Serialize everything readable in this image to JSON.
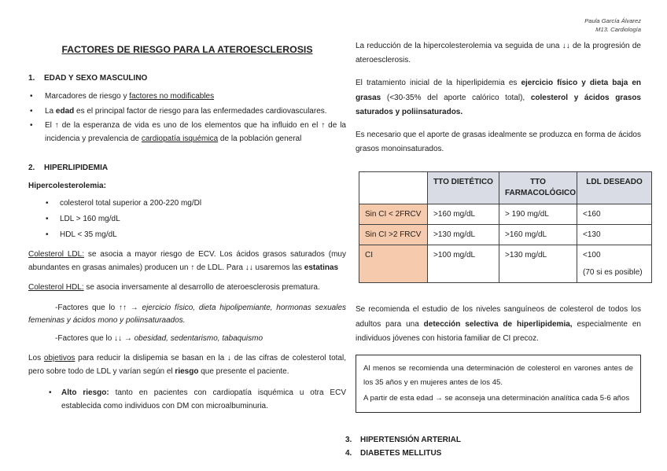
{
  "page": {
    "author": "Paula García Álvarez",
    "module": "M13. Cardiología",
    "title": "FACTORES DE RIESGO PARA LA ATEROESCLEROSIS"
  },
  "left": {
    "section1": {
      "number": "1.",
      "heading": "EDAD Y SEXO MASCULINO"
    },
    "s1_bullets": [
      [
        {
          "t": "Marcadores de riesgo y "
        },
        {
          "t": "factores no modificables",
          "u": true
        }
      ],
      [
        {
          "t": "La "
        },
        {
          "t": "edad",
          "b": true
        },
        {
          "t": " es el principal factor de riesgo para las enfermedades cardiovasculares."
        }
      ],
      [
        {
          "t": "El ↑ de la esperanza de vida es uno de los elementos que ha influido en el ↑ de la incidencia y prevalencia de "
        },
        {
          "t": "cardiopatía isquémica",
          "u": true
        },
        {
          "t": " de la población general"
        }
      ]
    ],
    "section2": {
      "number": "2.",
      "heading": "HIPERLIPIDEMIA"
    },
    "hiper_heading": "Hipercolesterolemia:",
    "s2_bullets": [
      "colesterol total superior a 200-220 mg/Dl",
      "LDL > 160 mg/dL",
      "HDL < 35 mg/dL"
    ],
    "ldl_para": [
      {
        "t": "Colesterol LDL:",
        "u": true
      },
      {
        "t": " se asocia a mayor riesgo de ECV. Los ácidos grasos saturados (muy abundantes en grasas animales) producen un ↑ de LDL. Para ↓↓ usaremos las "
      },
      {
        "t": "estatinas",
        "b": true
      }
    ],
    "hdl_para": [
      {
        "t": "Colesterol HDL:",
        "u": true
      },
      {
        "t": " se asocia inversamente al desarrollo de ateroesclerosis prematura."
      }
    ],
    "factores_up": [
      {
        "t": "-Factores que lo ↑↑ → "
      },
      {
        "t": "ejercicio físico, dieta hipolipemiante, hormonas sexuales femeninas y ácidos mono y poliinsaturaados.",
        "i": true
      }
    ],
    "factores_down": [
      {
        "t": "-Factores que lo ↓↓ → "
      },
      {
        "t": "obesidad, sedentarismo, tabaquismo",
        "i": true
      }
    ],
    "objetivos_para": [
      {
        "t": "Los "
      },
      {
        "t": "objetivos",
        "u": true
      },
      {
        "t": " para reducir la dislipemia se basan en la ↓ de las cifras de colesterol total, pero sobre todo de LDL y varían según el "
      },
      {
        "t": "riesgo",
        "b": true
      },
      {
        "t": " que presente el paciente."
      }
    ],
    "alto_riesgo_bullet": [
      {
        "t": "Alto riesgo:",
        "b": true
      },
      {
        "t": " tanto en pacientes con cardiopatía isquémica u otra ECV establecida como individuos con DM con microalbuminuria."
      }
    ]
  },
  "right": {
    "para1": [
      {
        "t": "La reducción de la hipercolesterolemia va seguida de una ↓↓ de la progresión de ateroesclerosis."
      }
    ],
    "para2": [
      {
        "t": "El tratamiento inicial de la hiperlipidemia es "
      },
      {
        "t": "ejercicio físico y dieta baja en grasas",
        "b": true
      },
      {
        "t": " (<30-35% del aporte calórico total), "
      },
      {
        "t": "colesterol y ácidos grasos saturados y poliinsaturados.",
        "b": true
      }
    ],
    "para3": [
      {
        "t": "Es necesario que el aporte de grasas idealmente se produzca en forma de ácidos grasos monoinsaturados."
      }
    ],
    "table": {
      "header_bg": "#d9dce4",
      "label_bg": "#f6cbad",
      "headers": [
        "",
        "TTO DIETÉTICO",
        "TTO FARMACOLÓGICO",
        "LDL DESEADO"
      ],
      "rows": [
        {
          "label": "Sin CI  < 2FRCV",
          "dietetico": ">160 mg/dL",
          "farmacologico": "> 190 mg/dL",
          "ldl": "<160",
          "ldl_note": ""
        },
        {
          "label": "Sin CI >2 FRCV",
          "dietetico": ">130 mg/dL",
          "farmacologico": ">160 mg/dL",
          "ldl": "<130",
          "ldl_note": ""
        },
        {
          "label": "CI",
          "dietetico": ">100 mg/dL",
          "farmacologico": ">130 mg/dL",
          "ldl": "<100",
          "ldl_note": "(70 si es posible)"
        }
      ]
    },
    "para4": [
      {
        "t": "Se recomienda el estudio de los niveles sanguíneos de colesterol de todos los adultos para una "
      },
      {
        "t": "detección selectiva de hiperlipidemia,",
        "b": true
      },
      {
        "t": " especialmente en individuos jóvenes con historia familiar de CI precoz."
      }
    ],
    "box": {
      "line1": "Al menos se recomienda una determinación de colesterol en varones antes de los 35 años y en mujeres antes de los 45.",
      "line2": "A partir de esta edad → se aconseja una determinación analítica cada 5-6 años"
    },
    "item3": {
      "number": "3.",
      "heading": "HIPERTENSIÓN ARTERIAL"
    },
    "item4": {
      "number": "4.",
      "heading": "DIABETES MELLITUS"
    }
  }
}
